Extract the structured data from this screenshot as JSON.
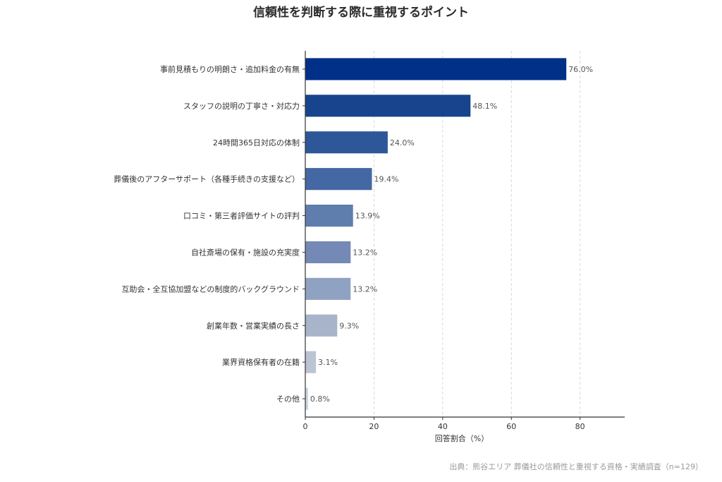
{
  "chart_data": {
    "type": "bar",
    "orientation": "horizontal",
    "title": "信頼性を判断する際に重視するポイント",
    "categories": [
      "事前見積もりの明朗さ・追加料金の有無",
      "スタッフの説明の丁寧さ・対応力",
      "24時間365日対応の体制",
      "葬儀後のアフターサポート（各種手続きの支援など）",
      "口コミ・第三者評価サイトの評判",
      "自社斎場の保有・施設の充実度",
      "互助会・全互協加盟などの制度的バックグラウンド",
      "創業年数・営業実績の長さ",
      "業界資格保有者の在籍",
      "その他"
    ],
    "values": [
      76.0,
      48.1,
      24.0,
      19.4,
      13.9,
      13.2,
      13.2,
      9.3,
      3.1,
      0.8
    ],
    "value_labels": [
      "76.0%",
      "48.1%",
      "24.0%",
      "19.4%",
      "13.9%",
      "13.2%",
      "13.2%",
      "9.3%",
      "3.1%",
      "0.8%"
    ],
    "colors": [
      "#003087",
      "#17448d",
      "#2d5798",
      "#4468a3",
      "#5f7dad",
      "#7589b6",
      "#8fa2c1",
      "#a7b4c9",
      "#bac4d2",
      "#ccd3dd"
    ],
    "xlabel": "回答割合（%）",
    "xticks": [
      0,
      20,
      40,
      60,
      80
    ],
    "xlim": [
      0,
      93
    ],
    "grid": "vertical dashed",
    "source": "出典：熊谷エリア 葬儀社の信頼性と重視する資格・実績調査（n=129）"
  }
}
